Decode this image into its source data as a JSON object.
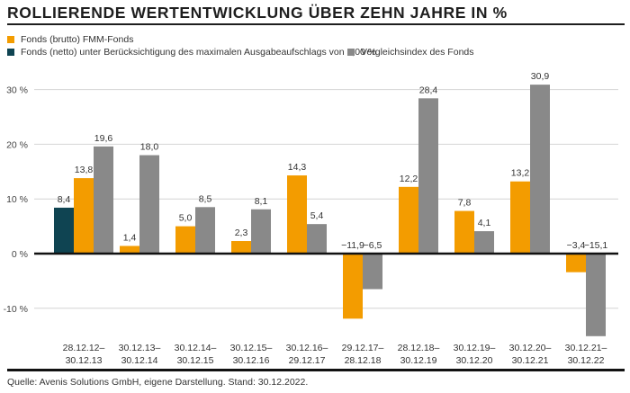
{
  "title": "ROLLIERENDE WERTENTWICKLUNG ÜBER ZEHN JAHRE IN %",
  "source": "Quelle: Avenis Solutions GmbH, eigene Darstellung. Stand: 30.12.2022.",
  "colors": {
    "brutto": "#f39c00",
    "netto": "#0f4452",
    "index": "#898989",
    "grid": "#d4d4d4",
    "zero_line": "#111111"
  },
  "chart_data": {
    "type": "bar",
    "title": "ROLLIERENDE WERTENTWICKLUNG ÜBER ZEHN JAHRE IN %",
    "xlabel": "",
    "ylabel": "",
    "ylim": [
      -15.1,
      30.9
    ],
    "grid": true,
    "legend_position": "top-left",
    "yticks": [
      {
        "value": 30,
        "label": "30 %"
      },
      {
        "value": 20,
        "label": "20 %"
      },
      {
        "value": 10,
        "label": "10 %"
      },
      {
        "value": 0,
        "label": "0 %"
      },
      {
        "value": -10,
        "label": "-10 %"
      }
    ],
    "categories": [
      [
        "28.12.12–",
        "30.12.13"
      ],
      [
        "30.12.13–",
        "30.12.14"
      ],
      [
        "30.12.14–",
        "30.12.15"
      ],
      [
        "30.12.15–",
        "30.12.16"
      ],
      [
        "30.12.16–",
        "29.12.17"
      ],
      [
        "29.12.17–",
        "28.12.18"
      ],
      [
        "28.12.18–",
        "30.12.19"
      ],
      [
        "30.12.19–",
        "30.12.20"
      ],
      [
        "30.12.20–",
        "30.12.21"
      ],
      [
        "30.12.21–",
        "30.12.22"
      ]
    ],
    "series": [
      {
        "key": "netto",
        "name": "Fonds (netto) unter Berücksichtigung des maximalen Ausgabeaufschlags von 5,00 %",
        "values": [
          8.4,
          null,
          null,
          null,
          null,
          null,
          null,
          null,
          null,
          null
        ],
        "labels": [
          "8,4",
          null,
          null,
          null,
          null,
          null,
          null,
          null,
          null,
          null
        ]
      },
      {
        "key": "brutto",
        "name": "Fonds (brutto) FMM-Fonds",
        "values": [
          13.8,
          1.4,
          5.0,
          2.3,
          14.3,
          -11.9,
          12.2,
          7.8,
          13.2,
          -3.4
        ],
        "labels": [
          "13,8",
          "1,4",
          "5,0",
          "2,3",
          "14,3",
          "−11,9",
          "12,2",
          "7,8",
          "13,2",
          "−3,4"
        ]
      },
      {
        "key": "index",
        "name": "Vergleichsindex des Fonds",
        "values": [
          19.6,
          18.0,
          8.5,
          8.1,
          5.4,
          -6.5,
          28.4,
          4.1,
          30.9,
          -15.1
        ],
        "labels": [
          "19,6",
          "18,0",
          "8,5",
          "8,1",
          "5,4",
          "−6,5",
          "28,4",
          "4,1",
          "30,9",
          "−15,1"
        ]
      }
    ]
  },
  "legend": [
    {
      "key": "brutto",
      "label": "Fonds (brutto) FMM-Fonds"
    },
    {
      "key": "netto",
      "label": "Fonds (netto) unter Berücksichtigung des maximalen Ausgabeaufschlags von 5,00 %"
    },
    {
      "key": "index",
      "label": "Vergleichsindex des Fonds"
    }
  ]
}
